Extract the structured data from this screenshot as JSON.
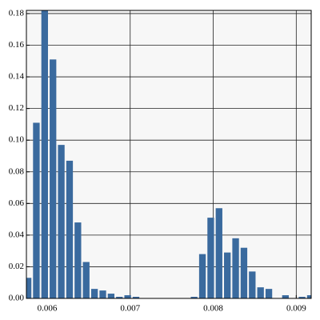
{
  "chart_data": {
    "type": "histogram",
    "bins": [
      0.00572,
      0.00582,
      0.00592,
      0.00602,
      0.00612,
      0.00622,
      0.00632,
      0.00642,
      0.00652,
      0.00662,
      0.00672,
      0.00682,
      0.00692,
      0.00702,
      0.00712,
      0.00722,
      0.00732,
      0.00742,
      0.00752,
      0.00762,
      0.00772,
      0.00782,
      0.00792,
      0.00802,
      0.00812,
      0.00822,
      0.00832,
      0.00842,
      0.00852,
      0.00862,
      0.00872,
      0.00882,
      0.00892,
      0.00902,
      0.00912,
      0.00922
    ],
    "values": [
      0.013,
      0.111,
      0.182,
      0.151,
      0.097,
      0.087,
      0.048,
      0.023,
      0.006,
      0.005,
      0.003,
      0.001,
      0.002,
      0.001,
      0,
      0,
      0,
      0,
      0,
      0,
      0.001,
      0.028,
      0.051,
      0.057,
      0.029,
      0.038,
      0.032,
      0.017,
      0.007,
      0.006,
      0,
      0.002,
      0,
      0.001,
      0.002
    ],
    "color": "#3a6a9e",
    "xlim": [
      0.00575,
      0.00918
    ],
    "ylim": [
      0,
      0.182
    ],
    "xticks": [
      0.006,
      0.007,
      0.008,
      0.009
    ],
    "yticks": [
      {
        "value": 0,
        "label": "0.00"
      },
      0.02,
      0.04,
      0.06,
      0.08,
      {
        "value": 0.1,
        "label": "0.10"
      },
      0.12,
      0.14,
      0.16,
      0.18
    ],
    "grid": true
  }
}
